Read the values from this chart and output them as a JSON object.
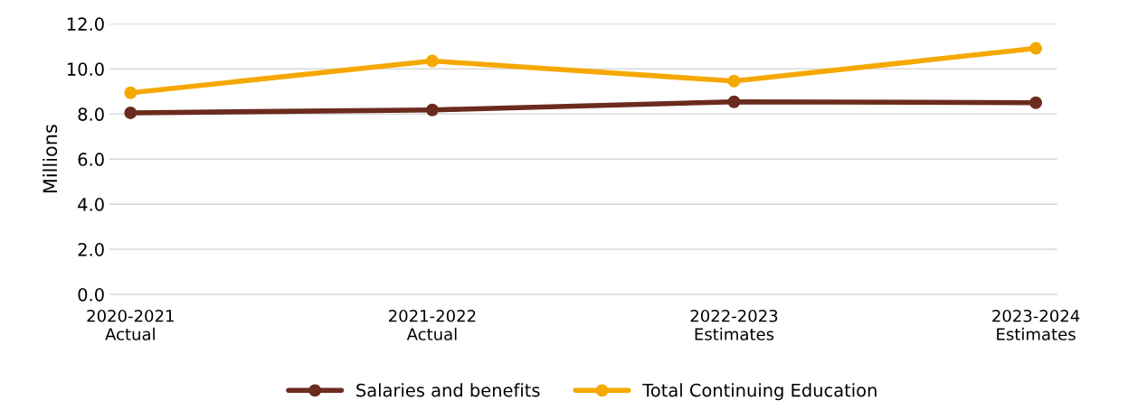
{
  "chart_data": {
    "type": "line",
    "ylabel": "Millions",
    "categories": [
      "2020-2021\nActual",
      "2021-2022\nActual",
      "2022-2023\nEstimates",
      "2023-2024\nEstimates"
    ],
    "series": [
      {
        "name": "Salaries and benefits",
        "color": "#6b2b1e",
        "values": [
          8.05,
          8.18,
          8.54,
          8.5
        ]
      },
      {
        "name": "Total Continuing Education",
        "color": "#f5a800",
        "values": [
          8.94,
          10.35,
          9.46,
          10.91
        ]
      }
    ],
    "ylim": [
      0,
      12
    ],
    "yticks": [
      {
        "value": 0,
        "label": "0.0"
      },
      {
        "value": 2,
        "label": "2.0"
      },
      {
        "value": 4,
        "label": "4.0"
      },
      {
        "value": 6,
        "label": "6.0"
      },
      {
        "value": 8,
        "label": "8.0"
      },
      {
        "value": 10,
        "label": "10.0"
      },
      {
        "value": 12,
        "label": "12.0"
      }
    ],
    "grid": "y",
    "legend": "bottom",
    "marker": "circle",
    "line_style": "solid"
  }
}
